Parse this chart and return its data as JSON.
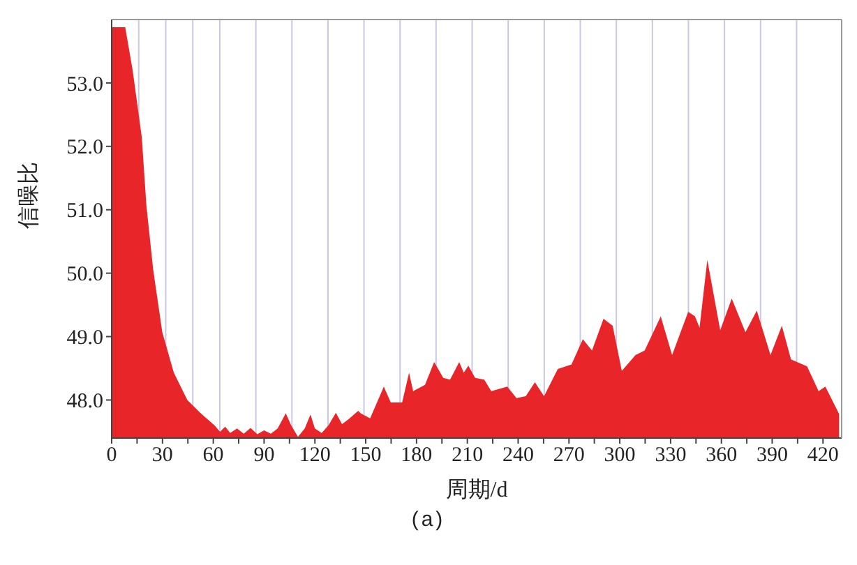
{
  "chart_data": {
    "type": "area",
    "xlabel": "周期/d",
    "ylabel": "信噪比",
    "annotations": [
      "(a)"
    ],
    "color": "#e8262a",
    "grid": "x",
    "xlim": [
      0,
      431
    ],
    "ylim": [
      47.4,
      54.0
    ],
    "xticks": [
      0,
      {
        "value": 15,
        "label": null
      },
      30,
      {
        "value": 45,
        "label": null
      },
      60,
      {
        "value": 75,
        "label": null
      },
      90,
      {
        "value": 105,
        "label": null
      },
      120,
      {
        "value": 135,
        "label": null
      },
      150,
      {
        "value": 165,
        "label": null
      },
      180,
      {
        "value": 195,
        "label": null
      },
      210,
      {
        "value": 225,
        "label": null
      },
      240,
      {
        "value": 255,
        "label": null
      },
      270,
      {
        "value": 285,
        "label": null
      },
      300,
      {
        "value": 315,
        "label": null
      },
      330,
      {
        "value": 345,
        "label": null
      },
      360,
      {
        "value": 375,
        "label": null
      },
      390,
      {
        "value": 405,
        "label": null
      },
      420
    ],
    "yticks": [
      {
        "value": 48,
        "label": "48.0"
      },
      {
        "value": 49,
        "label": "49.0"
      },
      {
        "value": 50,
        "label": "50.0"
      },
      {
        "value": 51,
        "label": "51.0"
      },
      {
        "value": 52,
        "label": "52.0"
      },
      {
        "value": 53,
        "label": "53.0"
      }
    ],
    "x": [
      0,
      8,
      12.4,
      17.8,
      20.5,
      24.5,
      29.9,
      36.7,
      44.7,
      52.6,
      60.7,
      64,
      67,
      70,
      74,
      78,
      82,
      86,
      90,
      94,
      98,
      102.8,
      106,
      110,
      114,
      117.4,
      120,
      124,
      128,
      132.4,
      136,
      140,
      145.6,
      147,
      152.6,
      160.7,
      164.8,
      171.5,
      175.6,
      178,
      185,
      190.4,
      195.8,
      199.8,
      205.2,
      207.9,
      210.6,
      214.6,
      220,
      224.1,
      228.2,
      233.6,
      239,
      244.5,
      249.9,
      255.3,
      263.4,
      271.5,
      278.2,
      283.6,
      290.4,
      295.8,
      301.2,
      309.3,
      314.7,
      324.2,
      330.9,
      340.4,
      344.4,
      347.1,
      351.7,
      359.3,
      366.1,
      374.2,
      380.9,
      389,
      395.7,
      401.1,
      410.6,
      417.4,
      421.4,
      429.5
    ],
    "values": [
      53.88,
      53.88,
      53.2,
      52.14,
      51.07,
      50.06,
      49.07,
      48.43,
      48.0,
      47.79,
      47.6,
      47.5,
      47.58,
      47.48,
      47.55,
      47.47,
      47.56,
      47.46,
      47.52,
      47.47,
      47.55,
      47.79,
      47.6,
      47.42,
      47.55,
      47.77,
      47.55,
      47.48,
      47.6,
      47.8,
      47.62,
      47.7,
      47.83,
      47.79,
      47.71,
      48.21,
      47.96,
      47.96,
      48.43,
      48.14,
      48.24,
      48.6,
      48.35,
      48.32,
      48.6,
      48.43,
      48.54,
      48.35,
      48.32,
      48.14,
      48.17,
      48.21,
      48.03,
      48.06,
      48.28,
      48.06,
      48.49,
      48.56,
      48.96,
      48.78,
      49.28,
      49.17,
      48.46,
      48.71,
      48.78,
      49.32,
      48.71,
      49.39,
      49.32,
      49.14,
      50.21,
      49.1,
      49.6,
      49.07,
      49.41,
      48.71,
      49.17,
      48.64,
      48.53,
      48.14,
      48.21,
      47.78
    ]
  }
}
